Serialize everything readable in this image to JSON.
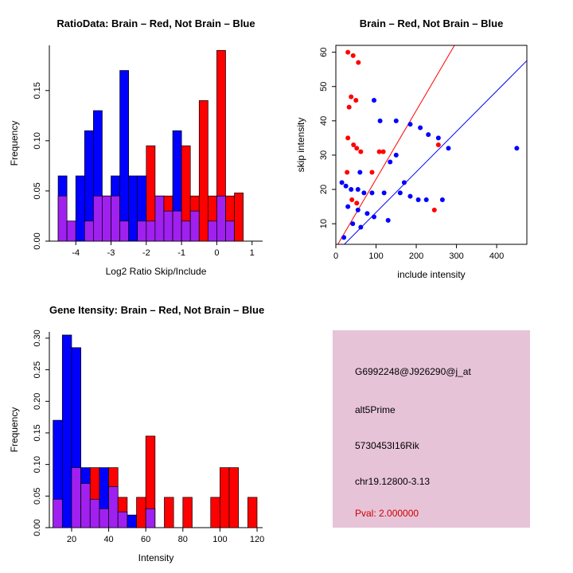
{
  "chart_data": [
    {
      "id": "ratio-hist",
      "type": "bar",
      "title": "RatioData: Brain – Red, Not Brain – Blue",
      "xlabel": "Log2 Ratio Skip/Include",
      "ylabel": "Frequency",
      "xlim": [
        -4.75,
        1.3
      ],
      "ylim": [
        0,
        0.195
      ],
      "xticks": [
        -4,
        -3,
        -2,
        -1,
        0,
        1
      ],
      "xtick_labels": [
        "-4",
        "-3",
        "-2",
        "-1",
        "0",
        "1"
      ],
      "yticks": [
        0,
        0.05,
        0.1,
        0.15
      ],
      "ytick_labels": [
        "0.00",
        "0.05",
        "0.10",
        "0.15"
      ],
      "bin_width": 0.25,
      "colors": {
        "red": "#ff0000",
        "blue": "#0000ff",
        "overlap": "#a020f0"
      },
      "legend": {
        "red_means": "Brain",
        "blue_means": "Not Brain"
      },
      "grid": false,
      "bins": [
        {
          "x": -4.5,
          "blue": 0.065,
          "red": 0.045
        },
        {
          "x": -4.25,
          "blue": 0.02,
          "red": 0.02
        },
        {
          "x": -4.0,
          "blue": 0.065,
          "red": 0.0
        },
        {
          "x": -3.75,
          "blue": 0.11,
          "red": 0.02
        },
        {
          "x": -3.5,
          "blue": 0.13,
          "red": 0.045
        },
        {
          "x": -3.25,
          "blue": 0.045,
          "red": 0.045
        },
        {
          "x": -3.0,
          "blue": 0.065,
          "red": 0.045
        },
        {
          "x": -2.75,
          "blue": 0.17,
          "red": 0.02
        },
        {
          "x": -2.5,
          "blue": 0.065,
          "red": 0.0
        },
        {
          "x": -2.25,
          "blue": 0.065,
          "red": 0.02
        },
        {
          "x": -2.0,
          "blue": 0.02,
          "red": 0.095
        },
        {
          "x": -1.75,
          "blue": 0.045,
          "red": 0.045
        },
        {
          "x": -1.5,
          "blue": 0.03,
          "red": 0.045
        },
        {
          "x": -1.25,
          "blue": 0.11,
          "red": 0.03
        },
        {
          "x": -1.0,
          "blue": 0.02,
          "red": 0.095
        },
        {
          "x": -0.75,
          "blue": 0.03,
          "red": 0.045
        },
        {
          "x": -0.5,
          "blue": 0.0,
          "red": 0.14
        },
        {
          "x": -0.25,
          "blue": 0.02,
          "red": 0.045
        },
        {
          "x": 0.0,
          "blue": 0.045,
          "red": 0.19
        },
        {
          "x": 0.25,
          "blue": 0.02,
          "red": 0.045
        },
        {
          "x": 0.5,
          "blue": 0.0,
          "red": 0.048
        }
      ]
    },
    {
      "id": "scatter",
      "type": "scatter",
      "title": "Brain – Red, Not Brain – Blue",
      "xlabel": "include intensity",
      "ylabel": "skip intensity",
      "xlim": [
        0,
        475
      ],
      "ylim": [
        4,
        62
      ],
      "xticks": [
        0,
        100,
        200,
        300,
        400
      ],
      "xtick_labels": [
        "0",
        "100",
        "200",
        "300",
        "400"
      ],
      "yticks": [
        10,
        20,
        30,
        40,
        50,
        60
      ],
      "ytick_labels": [
        "10",
        "20",
        "30",
        "40",
        "50",
        "60"
      ],
      "grid": false,
      "series": [
        {
          "name": "brain-red",
          "color": "#ff0000",
          "points": [
            [
              30,
              60
            ],
            [
              43,
              59
            ],
            [
              56,
              57
            ],
            [
              38,
              47
            ],
            [
              50,
              46
            ],
            [
              33,
              44
            ],
            [
              30,
              35
            ],
            [
              44,
              33
            ],
            [
              52,
              32
            ],
            [
              62,
              31
            ],
            [
              108,
              31
            ],
            [
              118,
              31
            ],
            [
              255,
              33
            ],
            [
              28,
              25
            ],
            [
              90,
              25
            ],
            [
              40,
              17
            ],
            [
              52,
              16
            ],
            [
              245,
              14
            ]
          ]
        },
        {
          "name": "not-brain-blue",
          "color": "#0000ff",
          "points": [
            [
              95,
              46
            ],
            [
              110,
              40
            ],
            [
              150,
              40
            ],
            [
              185,
              39
            ],
            [
              210,
              38
            ],
            [
              230,
              36
            ],
            [
              255,
              35
            ],
            [
              280,
              32
            ],
            [
              450,
              32
            ],
            [
              150,
              30
            ],
            [
              135,
              28
            ],
            [
              60,
              25
            ],
            [
              170,
              22
            ],
            [
              15,
              22
            ],
            [
              25,
              21
            ],
            [
              38,
              20
            ],
            [
              55,
              20
            ],
            [
              70,
              19
            ],
            [
              90,
              19
            ],
            [
              120,
              19
            ],
            [
              160,
              19
            ],
            [
              185,
              18
            ],
            [
              205,
              17
            ],
            [
              225,
              17
            ],
            [
              265,
              17
            ],
            [
              30,
              15
            ],
            [
              55,
              14
            ],
            [
              78,
              13
            ],
            [
              95,
              12
            ],
            [
              130,
              11
            ],
            [
              42,
              10
            ],
            [
              62,
              9
            ],
            [
              20,
              6
            ]
          ]
        }
      ],
      "lines": [
        {
          "name": "brain-fit-line",
          "color": "#ff0000",
          "slope": 0.2,
          "intercept": 3
        },
        {
          "name": "not-brain-fit-line",
          "color": "#0000ff",
          "slope": 0.118,
          "intercept": 1.5
        }
      ]
    },
    {
      "id": "gene-hist",
      "type": "bar",
      "title": "Gene Itensity: Brain – Red, Not Brain – Blue",
      "xlabel": "Intensity",
      "ylabel": "Frequency",
      "xlim": [
        8,
        123
      ],
      "ylim": [
        0,
        0.31
      ],
      "xticks": [
        20,
        40,
        60,
        80,
        100,
        120
      ],
      "xtick_labels": [
        "20",
        "40",
        "60",
        "80",
        "100",
        "120"
      ],
      "yticks": [
        0,
        0.05,
        0.1,
        0.15,
        0.2,
        0.25,
        0.3
      ],
      "ytick_labels": [
        "0.00",
        "0.05",
        "0.10",
        "0.15",
        "0.20",
        "0.25",
        "0.30"
      ],
      "bin_width": 5,
      "colors": {
        "red": "#ff0000",
        "blue": "#0000ff",
        "overlap": "#a020f0"
      },
      "legend": {
        "red_means": "Brain",
        "blue_means": "Not Brain"
      },
      "grid": false,
      "bins": [
        {
          "x": 10,
          "blue": 0.17,
          "red": 0.045
        },
        {
          "x": 15,
          "blue": 0.305,
          "red": 0.0
        },
        {
          "x": 20,
          "blue": 0.285,
          "red": 0.095
        },
        {
          "x": 25,
          "blue": 0.095,
          "red": 0.07
        },
        {
          "x": 30,
          "blue": 0.045,
          "red": 0.095
        },
        {
          "x": 35,
          "blue": 0.095,
          "red": 0.03
        },
        {
          "x": 40,
          "blue": 0.065,
          "red": 0.095
        },
        {
          "x": 45,
          "blue": 0.025,
          "red": 0.048
        },
        {
          "x": 50,
          "blue": 0.02,
          "red": 0.0
        },
        {
          "x": 55,
          "blue": 0.0,
          "red": 0.048
        },
        {
          "x": 60,
          "blue": 0.03,
          "red": 0.145
        },
        {
          "x": 70,
          "blue": 0.0,
          "red": 0.048
        },
        {
          "x": 80,
          "blue": 0.0,
          "red": 0.048
        },
        {
          "x": 95,
          "blue": 0.0,
          "red": 0.048
        },
        {
          "x": 100,
          "blue": 0.0,
          "red": 0.095
        },
        {
          "x": 105,
          "blue": 0.0,
          "red": 0.095
        },
        {
          "x": 115,
          "blue": 0.0,
          "red": 0.048
        }
      ]
    }
  ],
  "info_panel": {
    "bg": "#e7c3d8",
    "lines": [
      {
        "text": "G6992248@J926290@j_at",
        "color": "#000000"
      },
      {
        "text": "alt5Prime",
        "color": "#000000"
      },
      {
        "text": "5730453I16Rik",
        "color": "#000000"
      },
      {
        "text": "chr19.12800-3.13",
        "color": "#000000"
      },
      {
        "text": "Pval: 2.000000",
        "color": "#cc0000"
      }
    ]
  }
}
